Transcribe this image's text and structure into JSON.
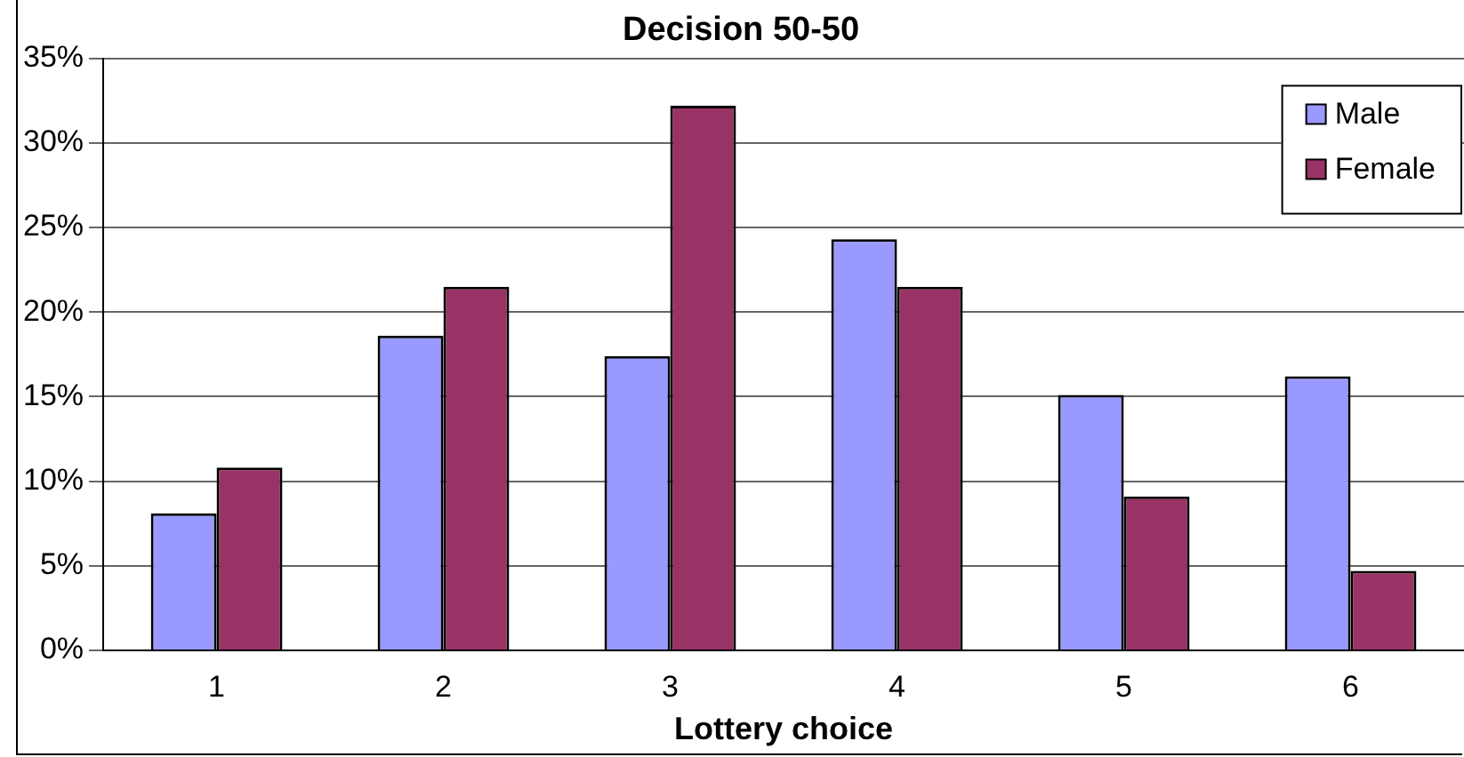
{
  "chart_data": {
    "type": "bar",
    "title": "Decision 50-50",
    "xlabel": "Lottery choice",
    "categories": [
      "1",
      "2",
      "3",
      "4",
      "5",
      "6"
    ],
    "series": [
      {
        "name": "Male",
        "color": "#9999ff",
        "values": [
          8.1,
          18.6,
          17.4,
          24.3,
          15.1,
          16.2
        ]
      },
      {
        "name": "Female",
        "color": "#993366",
        "values": [
          10.8,
          21.5,
          32.2,
          21.5,
          9.1,
          4.7
        ]
      }
    ],
    "ylim": [
      0,
      35
    ],
    "yticks": [
      {
        "value": 0,
        "label": "0%"
      },
      {
        "value": 5,
        "label": "5%"
      },
      {
        "value": 10,
        "label": "10%"
      },
      {
        "value": 15,
        "label": "15%"
      },
      {
        "value": 20,
        "label": "20%"
      },
      {
        "value": 25,
        "label": "25%"
      },
      {
        "value": 30,
        "label": "30%"
      },
      {
        "value": 35,
        "label": "35%"
      }
    ],
    "grid": "y",
    "legend": "top right"
  }
}
